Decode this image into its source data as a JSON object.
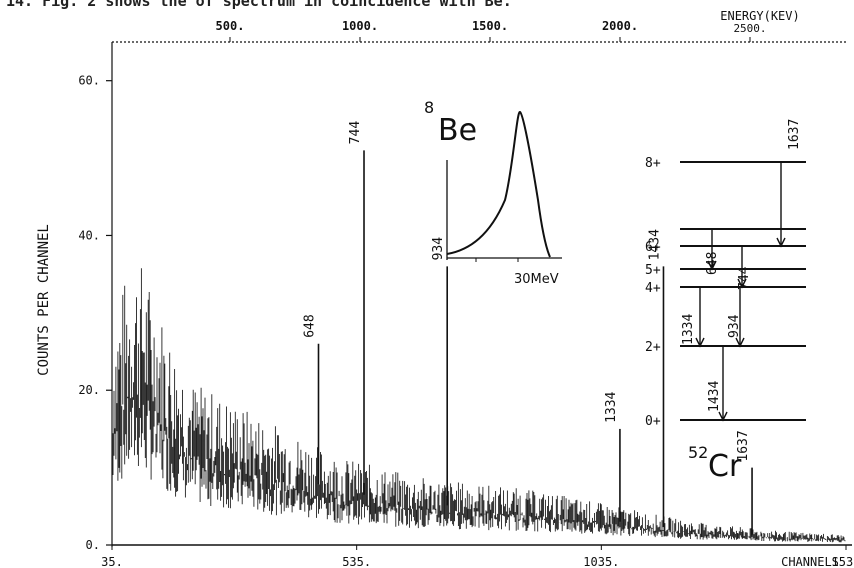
{
  "header_fragment": "14. Fig. 2 shows the    of spectrum in coincidence with   Be.",
  "chart_data": {
    "type": "histogram",
    "ylabel": "COUNTS PER CHANNEL",
    "x_bottom_label": "CHANNELS",
    "x_top_label": "ENERGY(KEV)",
    "ylim": [
      0,
      65
    ],
    "xlim_channels": [
      35,
      1535
    ],
    "y_ticks": [
      "0.",
      "20.",
      "40.",
      "60."
    ],
    "x_bottom_ticks": [
      {
        "ch": 35,
        "label": "35."
      },
      {
        "ch": 535,
        "label": "535."
      },
      {
        "ch": 1035,
        "label": "1035."
      },
      {
        "ch": 1535,
        "label": "1535"
      }
    ],
    "x_top_ticks": [
      {
        "kev": 500,
        "label": "500."
      },
      {
        "kev": 1000,
        "label": "1000."
      },
      {
        "kev": 1500,
        "label": "1500."
      },
      {
        "kev": 2000,
        "label": "2000."
      },
      {
        "kev": 2500,
        "label": "2500."
      }
    ],
    "peaks": [
      {
        "label": "648",
        "channel": 457,
        "counts": 26
      },
      {
        "label": "744",
        "channel": 550,
        "counts": 51
      },
      {
        "label": "934",
        "channel": 720,
        "counts": 36
      },
      {
        "label": "1334",
        "channel": 1073,
        "counts": 15
      },
      {
        "label": "1434",
        "channel": 1162,
        "counts": 36
      },
      {
        "label": "1637",
        "channel": 1343,
        "counts": 10
      }
    ],
    "continuum": [
      {
        "ch": 35,
        "counts": 17
      },
      {
        "ch": 60,
        "counts": 21
      },
      {
        "ch": 90,
        "counts": 23
      },
      {
        "ch": 120,
        "counts": 20
      },
      {
        "ch": 160,
        "counts": 16
      },
      {
        "ch": 200,
        "counts": 13
      },
      {
        "ch": 250,
        "counts": 12
      },
      {
        "ch": 300,
        "counts": 11
      },
      {
        "ch": 350,
        "counts": 10
      },
      {
        "ch": 400,
        "counts": 9
      },
      {
        "ch": 450,
        "counts": 8
      },
      {
        "ch": 500,
        "counts": 7
      },
      {
        "ch": 550,
        "counts": 6.5
      },
      {
        "ch": 600,
        "counts": 6
      },
      {
        "ch": 650,
        "counts": 5.5
      },
      {
        "ch": 700,
        "counts": 5.2
      },
      {
        "ch": 750,
        "counts": 5
      },
      {
        "ch": 800,
        "counts": 4.8
      },
      {
        "ch": 850,
        "counts": 4.6
      },
      {
        "ch": 900,
        "counts": 4.3
      },
      {
        "ch": 950,
        "counts": 4
      },
      {
        "ch": 1000,
        "counts": 3.6
      },
      {
        "ch": 1050,
        "counts": 3.2
      },
      {
        "ch": 1100,
        "counts": 2.8
      },
      {
        "ch": 1150,
        "counts": 2.4
      },
      {
        "ch": 1200,
        "counts": 2
      },
      {
        "ch": 1250,
        "counts": 1.7
      },
      {
        "ch": 1300,
        "counts": 1.5
      },
      {
        "ch": 1350,
        "counts": 1.3
      },
      {
        "ch": 1400,
        "counts": 1.1
      },
      {
        "ch": 1450,
        "counts": 1
      },
      {
        "ch": 1500,
        "counts": 0.9
      },
      {
        "ch": 1535,
        "counts": 0.8
      }
    ],
    "inset_spectrum": {
      "title": "8Be",
      "title_mass": "8",
      "title_element": "Be",
      "energy_label": "30MeV"
    },
    "level_scheme": {
      "nucleus": "52Cr",
      "mass": "52",
      "element": "Cr",
      "levels": [
        {
          "spin": "0+",
          "row": 0
        },
        {
          "spin": "2+",
          "row": 1
        },
        {
          "spin": "4+",
          "row": 2
        },
        {
          "spin": "5+",
          "row": 3
        },
        {
          "spin": "6+",
          "row": 4
        },
        {
          "spin": "8+",
          "row": 5
        }
      ],
      "transitions": [
        "1637",
        "648",
        "744",
        "1334",
        "934",
        "1434"
      ]
    }
  }
}
